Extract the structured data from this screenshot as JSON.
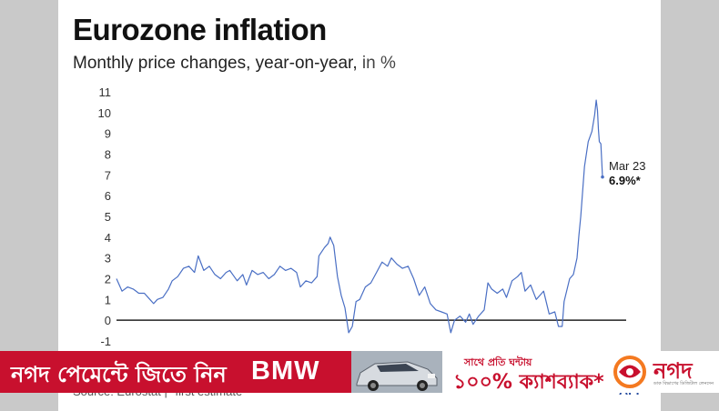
{
  "chart_data": {
    "type": "line",
    "title": "Eurozone inflation",
    "subtitle": "Monthly price changes, year-on-year,",
    "subtitle_unit": "in %",
    "ylim": [
      -1,
      11
    ],
    "yticks": [
      -1,
      0,
      1,
      2,
      3,
      4,
      5,
      6,
      7,
      8,
      9,
      10,
      11
    ],
    "x_range": [
      1997.0,
      2023.17
    ],
    "grid": false,
    "series": [
      {
        "color": "#4a6fc4",
        "points": [
          [
            1997.0,
            2.0
          ],
          [
            1997.3,
            1.4
          ],
          [
            1997.6,
            1.6
          ],
          [
            1997.9,
            1.5
          ],
          [
            1998.2,
            1.3
          ],
          [
            1998.5,
            1.3
          ],
          [
            1998.8,
            1.0
          ],
          [
            1999.0,
            0.8
          ],
          [
            1999.2,
            1.0
          ],
          [
            1999.5,
            1.1
          ],
          [
            1999.8,
            1.5
          ],
          [
            2000.0,
            1.9
          ],
          [
            2000.3,
            2.1
          ],
          [
            2000.6,
            2.5
          ],
          [
            2000.9,
            2.6
          ],
          [
            2001.2,
            2.3
          ],
          [
            2001.4,
            3.1
          ],
          [
            2001.7,
            2.4
          ],
          [
            2002.0,
            2.6
          ],
          [
            2002.3,
            2.2
          ],
          [
            2002.6,
            2.0
          ],
          [
            2002.9,
            2.3
          ],
          [
            2003.1,
            2.4
          ],
          [
            2003.5,
            1.9
          ],
          [
            2003.8,
            2.2
          ],
          [
            2004.0,
            1.7
          ],
          [
            2004.3,
            2.4
          ],
          [
            2004.6,
            2.2
          ],
          [
            2004.9,
            2.3
          ],
          [
            2005.2,
            2.0
          ],
          [
            2005.5,
            2.2
          ],
          [
            2005.8,
            2.6
          ],
          [
            2006.1,
            2.4
          ],
          [
            2006.4,
            2.5
          ],
          [
            2006.7,
            2.3
          ],
          [
            2006.9,
            1.6
          ],
          [
            2007.2,
            1.9
          ],
          [
            2007.5,
            1.8
          ],
          [
            2007.8,
            2.1
          ],
          [
            2007.9,
            3.1
          ],
          [
            2008.2,
            3.5
          ],
          [
            2008.4,
            3.7
          ],
          [
            2008.5,
            4.0
          ],
          [
            2008.7,
            3.6
          ],
          [
            2008.9,
            2.1
          ],
          [
            2009.1,
            1.2
          ],
          [
            2009.3,
            0.6
          ],
          [
            2009.5,
            -0.6
          ],
          [
            2009.7,
            -0.3
          ],
          [
            2009.9,
            0.9
          ],
          [
            2010.1,
            1.0
          ],
          [
            2010.4,
            1.6
          ],
          [
            2010.7,
            1.8
          ],
          [
            2011.0,
            2.3
          ],
          [
            2011.3,
            2.8
          ],
          [
            2011.6,
            2.6
          ],
          [
            2011.8,
            3.0
          ],
          [
            2012.1,
            2.7
          ],
          [
            2012.4,
            2.5
          ],
          [
            2012.7,
            2.6
          ],
          [
            2013.0,
            2.0
          ],
          [
            2013.3,
            1.2
          ],
          [
            2013.6,
            1.6
          ],
          [
            2013.9,
            0.8
          ],
          [
            2014.2,
            0.5
          ],
          [
            2014.5,
            0.4
          ],
          [
            2014.8,
            0.3
          ],
          [
            2015.0,
            -0.6
          ],
          [
            2015.2,
            0.0
          ],
          [
            2015.5,
            0.2
          ],
          [
            2015.8,
            -0.1
          ],
          [
            2016.0,
            0.3
          ],
          [
            2016.2,
            -0.2
          ],
          [
            2016.5,
            0.2
          ],
          [
            2016.8,
            0.5
          ],
          [
            2017.0,
            1.8
          ],
          [
            2017.2,
            1.5
          ],
          [
            2017.5,
            1.3
          ],
          [
            2017.8,
            1.5
          ],
          [
            2018.0,
            1.1
          ],
          [
            2018.3,
            1.9
          ],
          [
            2018.6,
            2.1
          ],
          [
            2018.8,
            2.3
          ],
          [
            2019.0,
            1.4
          ],
          [
            2019.3,
            1.7
          ],
          [
            2019.6,
            1.0
          ],
          [
            2019.9,
            1.3
          ],
          [
            2020.0,
            1.4
          ],
          [
            2020.3,
            0.3
          ],
          [
            2020.6,
            0.4
          ],
          [
            2020.8,
            -0.3
          ],
          [
            2021.0,
            -0.3
          ],
          [
            2021.1,
            0.9
          ],
          [
            2021.4,
            2.0
          ],
          [
            2021.6,
            2.2
          ],
          [
            2021.8,
            3.0
          ],
          [
            2021.9,
            4.1
          ],
          [
            2022.0,
            5.0
          ],
          [
            2022.2,
            7.4
          ],
          [
            2022.4,
            8.6
          ],
          [
            2022.6,
            9.1
          ],
          [
            2022.75,
            9.9
          ],
          [
            2022.83,
            10.6
          ],
          [
            2022.9,
            10.1
          ],
          [
            2022.95,
            9.2
          ],
          [
            2023.0,
            8.6
          ],
          [
            2023.08,
            8.5
          ],
          [
            2023.17,
            6.9
          ]
        ]
      }
    ],
    "annotation": {
      "label": "Mar 23",
      "value": "6.9%*",
      "x": 2023.17,
      "y": 6.9
    }
  },
  "source": "Source: Eurostat |  *first estimate",
  "credit": "AFP",
  "ad": {
    "text": "নগদ পেমেন্টে জিতে নিন",
    "brand": "BMW",
    "line1": "সাথে প্রতি ঘন্টায়",
    "line2": "১০০% ক্যাশব্যাক*",
    "logo": "নগদ",
    "logo_sub": "ডাক বিভাগের ডিজিটাল লেনদেন",
    "accent_color": "#c8102e"
  }
}
